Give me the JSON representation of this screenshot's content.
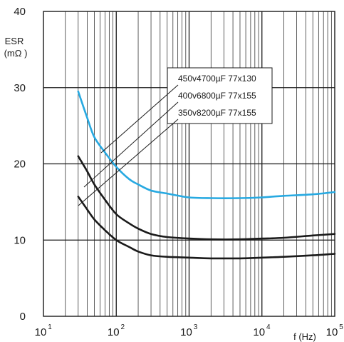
{
  "chart_data": {
    "type": "line",
    "title": "",
    "xscale": "log",
    "xlim": [
      10,
      100000
    ],
    "ylim": [
      0,
      40
    ],
    "xlabel": "f (Hz)",
    "ylabel_line1": "ESR",
    "ylabel_line2": "(mΩ )",
    "grid": true,
    "y_ticks": [
      "0",
      "10",
      "20",
      "30",
      "40"
    ],
    "x_ticks": [
      {
        "base": "10",
        "exp": "1"
      },
      {
        "base": "10",
        "exp": "2"
      },
      {
        "base": "10",
        "exp": "3"
      },
      {
        "base": "10",
        "exp": "4"
      },
      {
        "base": "10",
        "exp": "5"
      }
    ],
    "series": [
      {
        "name": "450v4700µF 77x130",
        "color": "#27a9e1",
        "x": [
          30,
          40,
          50,
          70,
          100,
          150,
          200,
          300,
          500,
          1000,
          2000,
          5000,
          10000,
          20000,
          50000,
          100000
        ],
        "y": [
          29.5,
          26.0,
          23.5,
          21.5,
          19.6,
          18.0,
          17.3,
          16.5,
          16.1,
          15.6,
          15.5,
          15.5,
          15.6,
          15.8,
          16.0,
          16.3
        ]
      },
      {
        "name": "400v6800µF 77x155",
        "color": "#1a1a1a",
        "x": [
          30,
          40,
          50,
          70,
          100,
          150,
          200,
          300,
          500,
          1000,
          2000,
          5000,
          10000,
          20000,
          50000,
          100000
        ],
        "y": [
          21.0,
          19.0,
          17.3,
          15.3,
          13.4,
          12.2,
          11.5,
          10.8,
          10.4,
          10.2,
          10.1,
          10.1,
          10.2,
          10.3,
          10.6,
          10.8
        ]
      },
      {
        "name": "350v8200µF 77x155",
        "color": "#1a1a1a",
        "x": [
          30,
          40,
          50,
          70,
          100,
          150,
          200,
          300,
          500,
          1000,
          2000,
          5000,
          10000,
          20000,
          50000,
          100000
        ],
        "y": [
          15.7,
          14.0,
          12.7,
          11.3,
          10.0,
          9.1,
          8.5,
          8.0,
          7.8,
          7.7,
          7.6,
          7.6,
          7.7,
          7.8,
          8.0,
          8.2
        ]
      }
    ]
  }
}
